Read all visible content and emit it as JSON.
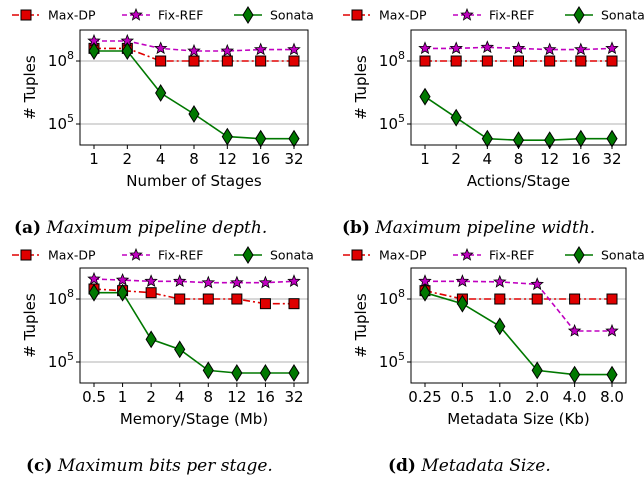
{
  "legend": [
    {
      "name": "Max-DP",
      "color": "#e00000",
      "marker": "square",
      "dash": "dashdot"
    },
    {
      "name": "Fix-REF",
      "color": "#c000c0",
      "marker": "star",
      "dash": "dashed"
    },
    {
      "name": "Sonata",
      "color": "#007800",
      "marker": "diamond",
      "dash": "solid"
    }
  ],
  "chart_data": [
    {
      "type": "line",
      "caption_label": "(a)",
      "caption_text": "Maximum pipeline depth.",
      "xlabel": "Number of Stages",
      "ylabel": "# Tuples",
      "x": [
        "1",
        "2",
        "4",
        "8",
        "12",
        "16",
        "32"
      ],
      "yscale": "log",
      "ylim": [
        10000,
        3000000000
      ],
      "yticks": [
        {
          "value": 100000,
          "label": "10^5"
        },
        {
          "value": 100000000,
          "label": "10^8"
        }
      ],
      "grid": "y",
      "series": [
        {
          "name": "Max-DP",
          "values": [
            400000000,
            400000000,
            100000000,
            100000000,
            100000000,
            100000000,
            100000000
          ]
        },
        {
          "name": "Fix-REF",
          "values": [
            900000000,
            900000000,
            400000000,
            300000000,
            300000000,
            350000000,
            350000000
          ]
        },
        {
          "name": "Sonata",
          "values": [
            300000000,
            300000000,
            3000000,
            300000,
            25000,
            20000,
            20000
          ]
        }
      ]
    },
    {
      "type": "line",
      "caption_label": "(b)",
      "caption_text": "Maximum pipeline width.",
      "xlabel": "Actions/Stage",
      "ylabel": "# Tuples",
      "x": [
        "1",
        "2",
        "4",
        "8",
        "12",
        "16",
        "32"
      ],
      "yscale": "log",
      "ylim": [
        10000,
        3000000000
      ],
      "yticks": [
        {
          "value": 100000,
          "label": "10^5"
        },
        {
          "value": 100000000,
          "label": "10^8"
        }
      ],
      "grid": "y",
      "series": [
        {
          "name": "Max-DP",
          "values": [
            100000000,
            100000000,
            100000000,
            100000000,
            100000000,
            100000000,
            100000000
          ]
        },
        {
          "name": "Fix-REF",
          "values": [
            400000000,
            400000000,
            450000000,
            400000000,
            350000000,
            350000000,
            400000000
          ]
        },
        {
          "name": "Sonata",
          "values": [
            2000000,
            200000,
            20000,
            17000,
            17000,
            20000,
            20000
          ]
        }
      ]
    },
    {
      "type": "line",
      "caption_label": "(c)",
      "caption_text": "Maximum bits per stage.",
      "xlabel": "Memory/Stage (Mb)",
      "ylabel": "# Tuples",
      "x": [
        "0.5",
        "1",
        "2",
        "4",
        "8",
        "12",
        "16",
        "32"
      ],
      "yscale": "log",
      "ylim": [
        10000,
        3000000000
      ],
      "yticks": [
        {
          "value": 100000,
          "label": "10^5"
        },
        {
          "value": 100000000,
          "label": "10^8"
        }
      ],
      "grid": "y",
      "series": [
        {
          "name": "Max-DP",
          "values": [
            300000000,
            250000000,
            200000000,
            100000000,
            100000000,
            100000000,
            60000000,
            60000000
          ]
        },
        {
          "name": "Fix-REF",
          "values": [
            900000000,
            800000000,
            700000000,
            700000000,
            600000000,
            600000000,
            600000000,
            700000000
          ]
        },
        {
          "name": "Sonata",
          "values": [
            200000000,
            200000000,
            1200000,
            400000,
            40000,
            30000,
            30000,
            30000
          ]
        }
      ]
    },
    {
      "type": "line",
      "caption_label": "(d)",
      "caption_text": "Metadata Size.",
      "xlabel": "Metadata Size (Kb)",
      "ylabel": "# Tuples",
      "x": [
        "0.25",
        "0.5",
        "1.0",
        "2.0",
        "4.0",
        "8.0"
      ],
      "yscale": "log",
      "ylim": [
        10000,
        3000000000
      ],
      "yticks": [
        {
          "value": 100000,
          "label": "10^5"
        },
        {
          "value": 100000000,
          "label": "10^8"
        }
      ],
      "grid": "y",
      "series": [
        {
          "name": "Max-DP",
          "values": [
            250000000,
            100000000,
            100000000,
            100000000,
            100000000,
            100000000
          ]
        },
        {
          "name": "Fix-REF",
          "values": [
            700000000,
            700000000,
            650000000,
            500000000,
            3000000,
            3000000
          ]
        },
        {
          "name": "Sonata",
          "values": [
            200000000,
            60000000,
            5000000,
            40000,
            25000,
            25000
          ]
        }
      ]
    }
  ]
}
